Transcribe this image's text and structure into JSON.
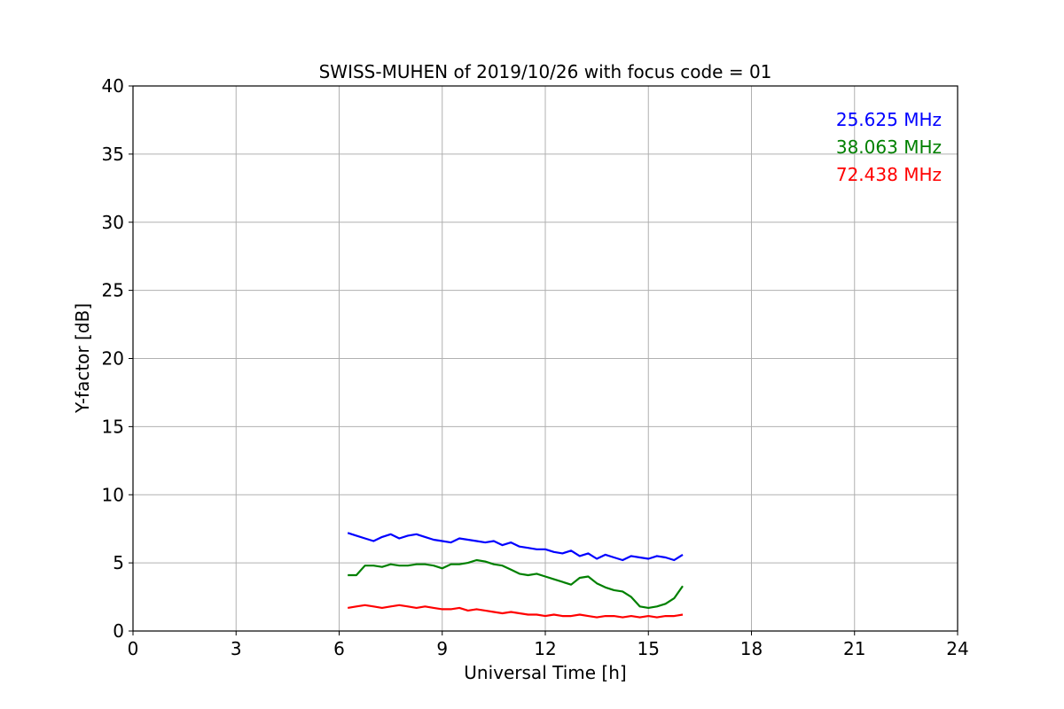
{
  "chart_data": {
    "type": "line",
    "title": "SWISS-MUHEN of 2019/10/26 with focus code = 01",
    "xlabel": "Universal Time [h]",
    "ylabel": "Y-factor [dB]",
    "xlim": [
      0,
      24
    ],
    "ylim": [
      0,
      40
    ],
    "xticks": [
      0,
      3,
      6,
      9,
      12,
      15,
      18,
      21,
      24
    ],
    "yticks": [
      0,
      5,
      10,
      15,
      20,
      25,
      30,
      35,
      40
    ],
    "grid": true,
    "legend_position": "top-right",
    "series": [
      {
        "name": "25.625 MHz",
        "color": "#0000ff",
        "x": [
          6.25,
          6.5,
          6.75,
          7.0,
          7.25,
          7.5,
          7.75,
          8.0,
          8.25,
          8.5,
          8.75,
          9.0,
          9.25,
          9.5,
          9.75,
          10.0,
          10.25,
          10.5,
          10.75,
          11.0,
          11.25,
          11.5,
          11.75,
          12.0,
          12.25,
          12.5,
          12.75,
          13.0,
          13.25,
          13.5,
          13.75,
          14.0,
          14.25,
          14.5,
          14.75,
          15.0,
          15.25,
          15.5,
          15.75,
          16.0
        ],
        "y": [
          7.2,
          7.0,
          6.8,
          6.6,
          6.9,
          7.1,
          6.8,
          7.0,
          7.1,
          6.9,
          6.7,
          6.6,
          6.5,
          6.8,
          6.7,
          6.6,
          6.5,
          6.6,
          6.3,
          6.5,
          6.2,
          6.1,
          6.0,
          6.0,
          5.8,
          5.7,
          5.9,
          5.5,
          5.7,
          5.3,
          5.6,
          5.4,
          5.2,
          5.5,
          5.4,
          5.3,
          5.5,
          5.4,
          5.2,
          5.6
        ]
      },
      {
        "name": "38.063 MHz",
        "color": "#008000",
        "x": [
          6.25,
          6.5,
          6.75,
          7.0,
          7.25,
          7.5,
          7.75,
          8.0,
          8.25,
          8.5,
          8.75,
          9.0,
          9.25,
          9.5,
          9.75,
          10.0,
          10.25,
          10.5,
          10.75,
          11.0,
          11.25,
          11.5,
          11.75,
          12.0,
          12.25,
          12.5,
          12.75,
          13.0,
          13.25,
          13.5,
          13.75,
          14.0,
          14.25,
          14.5,
          14.75,
          15.0,
          15.25,
          15.5,
          15.75,
          16.0
        ],
        "y": [
          4.1,
          4.1,
          4.8,
          4.8,
          4.7,
          4.9,
          4.8,
          4.8,
          4.9,
          4.9,
          4.8,
          4.6,
          4.9,
          4.9,
          5.0,
          5.2,
          5.1,
          4.9,
          4.8,
          4.5,
          4.2,
          4.1,
          4.2,
          4.0,
          3.8,
          3.6,
          3.4,
          3.9,
          4.0,
          3.5,
          3.2,
          3.0,
          2.9,
          2.5,
          1.8,
          1.7,
          1.8,
          2.0,
          2.4,
          3.3
        ]
      },
      {
        "name": "72.438 MHz",
        "color": "#ff0000",
        "x": [
          6.25,
          6.5,
          6.75,
          7.0,
          7.25,
          7.5,
          7.75,
          8.0,
          8.25,
          8.5,
          8.75,
          9.0,
          9.25,
          9.5,
          9.75,
          10.0,
          10.25,
          10.5,
          10.75,
          11.0,
          11.25,
          11.5,
          11.75,
          12.0,
          12.25,
          12.5,
          12.75,
          13.0,
          13.25,
          13.5,
          13.75,
          14.0,
          14.25,
          14.5,
          14.75,
          15.0,
          15.25,
          15.5,
          15.75,
          16.0
        ],
        "y": [
          1.7,
          1.8,
          1.9,
          1.8,
          1.7,
          1.8,
          1.9,
          1.8,
          1.7,
          1.8,
          1.7,
          1.6,
          1.6,
          1.7,
          1.5,
          1.6,
          1.5,
          1.4,
          1.3,
          1.4,
          1.3,
          1.2,
          1.2,
          1.1,
          1.2,
          1.1,
          1.1,
          1.2,
          1.1,
          1.0,
          1.1,
          1.1,
          1.0,
          1.1,
          1.0,
          1.1,
          1.0,
          1.1,
          1.1,
          1.2
        ]
      }
    ]
  }
}
